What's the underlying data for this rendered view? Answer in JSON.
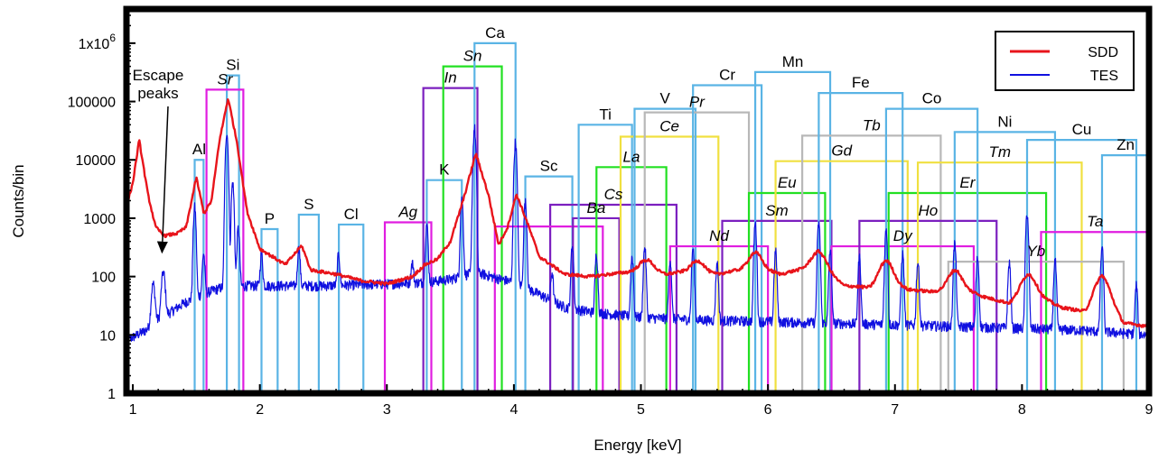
{
  "chart_data": {
    "type": "line",
    "xlabel": "Energy [keV]",
    "ylabel": "Counts/bin",
    "xlim": [
      0.95,
      9.0
    ],
    "ylim": [
      1,
      3000000
    ],
    "y_scale": "log",
    "x_ticks": [
      1,
      2,
      3,
      4,
      5,
      6,
      7,
      8,
      9
    ],
    "x_tick_labels": [
      "1",
      "2",
      "3",
      "4",
      "5",
      "6",
      "7",
      "8",
      "9"
    ],
    "y_ticks": [
      1,
      10,
      100,
      1000,
      10000,
      100000,
      1000000
    ],
    "y_tick_labels": [
      "1",
      "10",
      "100",
      "1000",
      "10000",
      "100000",
      "1x10^6"
    ],
    "grid": false,
    "legend_position": "top-right",
    "series": [
      {
        "name": "SDD",
        "color": "#e8141b",
        "base_points": [
          [
            0.95,
            1600
          ],
          [
            1.0,
            4000
          ],
          [
            1.05,
            22000
          ],
          [
            1.12,
            2500
          ],
          [
            1.18,
            700
          ],
          [
            1.25,
            500
          ],
          [
            1.35,
            550
          ],
          [
            1.42,
            700
          ],
          [
            1.5,
            5000
          ],
          [
            1.56,
            1200
          ],
          [
            1.62,
            2000
          ],
          [
            1.68,
            20000
          ],
          [
            1.75,
            115000
          ],
          [
            1.82,
            20000
          ],
          [
            1.9,
            1300
          ],
          [
            2.0,
            300
          ],
          [
            2.2,
            160
          ],
          [
            2.33,
            340
          ],
          [
            2.4,
            130
          ],
          [
            2.6,
            110
          ],
          [
            2.8,
            85
          ],
          [
            3.0,
            75
          ],
          [
            3.2,
            100
          ],
          [
            3.3,
            160
          ],
          [
            3.4,
            200
          ],
          [
            3.5,
            400
          ],
          [
            3.6,
            2000
          ],
          [
            3.7,
            13000
          ],
          [
            3.8,
            2500
          ],
          [
            3.88,
            350
          ],
          [
            3.95,
            700
          ],
          [
            4.02,
            2600
          ],
          [
            4.1,
            900
          ],
          [
            4.2,
            220
          ],
          [
            4.4,
            110
          ],
          [
            4.6,
            100
          ],
          [
            4.9,
            120
          ],
          [
            5.0,
            140
          ],
          [
            5.2,
            110
          ],
          [
            5.4,
            130
          ],
          [
            5.6,
            110
          ],
          [
            5.9,
            150
          ],
          [
            6.1,
            110
          ],
          [
            6.4,
            160
          ],
          [
            6.6,
            70
          ],
          [
            6.8,
            65
          ],
          [
            6.93,
            100
          ],
          [
            7.1,
            60
          ],
          [
            7.3,
            55
          ],
          [
            7.5,
            70
          ],
          [
            7.7,
            45
          ],
          [
            7.9,
            35
          ],
          [
            8.05,
            60
          ],
          [
            8.3,
            30
          ],
          [
            8.5,
            25
          ],
          [
            8.63,
            65
          ],
          [
            8.8,
            16
          ],
          [
            9.0,
            14
          ]
        ],
        "peaks": [
          [
            5.05,
            60,
            0.045
          ],
          [
            5.45,
            60,
            0.045
          ],
          [
            5.9,
            110,
            0.045
          ],
          [
            6.4,
            110,
            0.05
          ],
          [
            6.93,
            90,
            0.045
          ],
          [
            7.47,
            60,
            0.045
          ],
          [
            8.05,
            50,
            0.05
          ],
          [
            8.63,
            40,
            0.05
          ]
        ],
        "jitter": 0.06
      },
      {
        "name": "TES",
        "color": "#1010e0",
        "base_points": [
          [
            0.95,
            8
          ],
          [
            1.1,
            12
          ],
          [
            1.2,
            18
          ],
          [
            1.3,
            25
          ],
          [
            1.4,
            35
          ],
          [
            1.5,
            45
          ],
          [
            1.6,
            55
          ],
          [
            1.7,
            65
          ],
          [
            1.9,
            70
          ],
          [
            2.1,
            70
          ],
          [
            2.5,
            70
          ],
          [
            3.0,
            75
          ],
          [
            3.3,
            80
          ],
          [
            3.5,
            90
          ],
          [
            3.7,
            120
          ],
          [
            3.9,
            90
          ],
          [
            4.0,
            80
          ],
          [
            4.2,
            50
          ],
          [
            4.4,
            30
          ],
          [
            4.6,
            25
          ],
          [
            5.0,
            20
          ],
          [
            5.5,
            18
          ],
          [
            6.0,
            17
          ],
          [
            6.5,
            16
          ],
          [
            7.0,
            15
          ],
          [
            7.5,
            14
          ],
          [
            8.0,
            13
          ],
          [
            8.5,
            12
          ],
          [
            9.0,
            10
          ]
        ],
        "peaks": [
          [
            1.16,
            60,
            0.012
          ],
          [
            1.24,
            100,
            0.012
          ],
          [
            1.487,
            1500,
            0.008
          ],
          [
            1.557,
            200,
            0.008
          ],
          [
            1.74,
            30000,
            0.008
          ],
          [
            1.786,
            4000,
            0.008
          ],
          [
            1.83,
            600,
            0.008
          ],
          [
            2.013,
            180,
            0.008
          ],
          [
            2.307,
            250,
            0.008
          ],
          [
            2.62,
            170,
            0.008
          ],
          [
            3.2,
            100,
            0.008
          ],
          [
            3.314,
            700,
            0.008
          ],
          [
            3.59,
            2000,
            0.008
          ],
          [
            3.69,
            35000,
            0.008
          ],
          [
            4.012,
            20000,
            0.008
          ],
          [
            4.09,
            1800,
            0.008
          ],
          [
            4.3,
            80,
            0.008
          ],
          [
            4.46,
            320,
            0.008
          ],
          [
            4.65,
            220,
            0.008
          ],
          [
            4.93,
            200,
            0.008
          ],
          [
            5.03,
            300,
            0.008
          ],
          [
            5.23,
            180,
            0.008
          ],
          [
            5.41,
            280,
            0.008
          ],
          [
            5.6,
            150,
            0.008
          ],
          [
            5.9,
            800,
            0.008
          ],
          [
            6.06,
            250,
            0.008
          ],
          [
            6.4,
            800,
            0.008
          ],
          [
            6.49,
            260,
            0.008
          ],
          [
            6.72,
            200,
            0.008
          ],
          [
            6.93,
            600,
            0.008
          ],
          [
            7.06,
            230,
            0.008
          ],
          [
            7.18,
            160,
            0.008
          ],
          [
            7.47,
            350,
            0.008
          ],
          [
            7.65,
            200,
            0.008
          ],
          [
            7.9,
            160,
            0.008
          ],
          [
            8.04,
            1200,
            0.008
          ],
          [
            8.26,
            180,
            0.008
          ],
          [
            8.63,
            300,
            0.008
          ],
          [
            8.9,
            60,
            0.008
          ]
        ],
        "jitter": 0.2
      }
    ],
    "element_markers": [
      {
        "label": "Al",
        "x1": 1.487,
        "x2": 1.557,
        "h": 10000,
        "color": "#5ab4e5",
        "italic": false
      },
      {
        "label": "Si",
        "x1": 1.74,
        "x2": 1.836,
        "h": 280000,
        "color": "#5ab4e5",
        "italic": false
      },
      {
        "label": "Sr",
        "x1": 1.58,
        "x2": 1.87,
        "h": 160000,
        "color": "#e01de0",
        "italic": true
      },
      {
        "label": "P",
        "x1": 2.013,
        "x2": 2.14,
        "h": 650,
        "color": "#5ab4e5",
        "italic": false
      },
      {
        "label": "S",
        "x1": 2.307,
        "x2": 2.464,
        "h": 1150,
        "color": "#5ab4e5",
        "italic": false
      },
      {
        "label": "Cl",
        "x1": 2.622,
        "x2": 2.815,
        "h": 780,
        "color": "#5ab4e5",
        "italic": false
      },
      {
        "label": "Ag",
        "x1": 2.984,
        "x2": 3.35,
        "h": 850,
        "color": "#e01de0",
        "italic": true
      },
      {
        "label": "K",
        "x1": 3.314,
        "x2": 3.59,
        "h": 4500,
        "color": "#5ab4e5",
        "italic": false
      },
      {
        "label": "In",
        "x1": 3.287,
        "x2": 3.713,
        "h": 170000,
        "color": "#7b1fbf",
        "italic": true
      },
      {
        "label": "Sn",
        "x1": 3.444,
        "x2": 3.905,
        "h": 400000,
        "color": "#22e022",
        "italic": true
      },
      {
        "label": "Ca",
        "x1": 3.69,
        "x2": 4.013,
        "h": 1000000,
        "color": "#5ab4e5",
        "italic": false
      },
      {
        "label": "Sc",
        "x1": 4.09,
        "x2": 4.46,
        "h": 5200,
        "color": "#5ab4e5",
        "italic": false
      },
      {
        "label": "Cs",
        "x1": 4.286,
        "x2": 5.28,
        "h": 1700,
        "color": "#7b1fbf",
        "italic": true
      },
      {
        "label": "",
        "x1": 3.85,
        "x2": 4.7,
        "h": 720,
        "color": "#e01de0",
        "italic": false
      },
      {
        "label": "Ba",
        "x1": 4.465,
        "x2": 4.83,
        "h": 1000,
        "color": "#7b1fbf",
        "italic": true
      },
      {
        "label": "La",
        "x1": 4.65,
        "x2": 5.2,
        "h": 7500,
        "color": "#22e022",
        "italic": true
      },
      {
        "label": "Ti",
        "x1": 4.51,
        "x2": 4.93,
        "h": 40000,
        "color": "#5ab4e5",
        "italic": false
      },
      {
        "label": "Ce",
        "x1": 4.84,
        "x2": 5.61,
        "h": 25000,
        "color": "#f0e040",
        "italic": true
      },
      {
        "label": "V",
        "x1": 4.95,
        "x2": 5.43,
        "h": 75000,
        "color": "#5ab4e5",
        "italic": false
      },
      {
        "label": "Pr",
        "x1": 5.03,
        "x2": 5.85,
        "h": 65000,
        "color": "#b8b8b8",
        "italic": true
      },
      {
        "label": "Cr",
        "x1": 5.41,
        "x2": 5.95,
        "h": 190000,
        "color": "#5ab4e5",
        "italic": false
      },
      {
        "label": "Nd",
        "x1": 5.23,
        "x2": 6.0,
        "h": 330,
        "color": "#e01de0",
        "italic": true
      },
      {
        "label": "Sm",
        "x1": 5.64,
        "x2": 6.5,
        "h": 900,
        "color": "#7b1fbf",
        "italic": true
      },
      {
        "label": "Eu",
        "x1": 5.85,
        "x2": 6.45,
        "h": 2700,
        "color": "#22e022",
        "italic": true
      },
      {
        "label": "Mn",
        "x1": 5.9,
        "x2": 6.49,
        "h": 320000,
        "color": "#5ab4e5",
        "italic": false
      },
      {
        "label": "Gd",
        "x1": 6.06,
        "x2": 7.1,
        "h": 9500,
        "color": "#f0e040",
        "italic": true
      },
      {
        "label": "Tb",
        "x1": 6.27,
        "x2": 7.36,
        "h": 26000,
        "color": "#b8b8b8",
        "italic": true
      },
      {
        "label": "Fe",
        "x1": 6.4,
        "x2": 7.06,
        "h": 140000,
        "color": "#5ab4e5",
        "italic": false
      },
      {
        "label": "Dy",
        "x1": 6.5,
        "x2": 7.62,
        "h": 330,
        "color": "#e01de0",
        "italic": true
      },
      {
        "label": "Ho",
        "x1": 6.72,
        "x2": 7.8,
        "h": 900,
        "color": "#7b1fbf",
        "italic": true
      },
      {
        "label": "Er",
        "x1": 6.95,
        "x2": 8.19,
        "h": 2700,
        "color": "#22e022",
        "italic": true
      },
      {
        "label": "Co",
        "x1": 6.93,
        "x2": 7.65,
        "h": 75000,
        "color": "#5ab4e5",
        "italic": false
      },
      {
        "label": "Tm",
        "x1": 7.18,
        "x2": 8.47,
        "h": 9000,
        "color": "#f0e040",
        "italic": true
      },
      {
        "label": "Ni",
        "x1": 7.47,
        "x2": 8.26,
        "h": 30000,
        "color": "#5ab4e5",
        "italic": false
      },
      {
        "label": "Yb",
        "x1": 7.42,
        "x2": 8.8,
        "h": 180,
        "color": "#b8b8b8",
        "italic": true
      },
      {
        "label": "Cu",
        "x1": 8.04,
        "x2": 8.9,
        "h": 22000,
        "color": "#5ab4e5",
        "italic": false
      },
      {
        "label": "Ta",
        "x1": 8.15,
        "x2": 9.0,
        "h": 580,
        "color": "#e01de0",
        "italic": true
      },
      {
        "label": "Zn",
        "x1": 8.63,
        "x2": 9.0,
        "h": 12000,
        "color": "#5ab4e5",
        "italic": false
      }
    ],
    "annotations": [
      {
        "text_lines": [
          "Escape",
          "peaks"
        ],
        "arrow_to": [
          1.23,
          1.0
        ]
      }
    ]
  }
}
